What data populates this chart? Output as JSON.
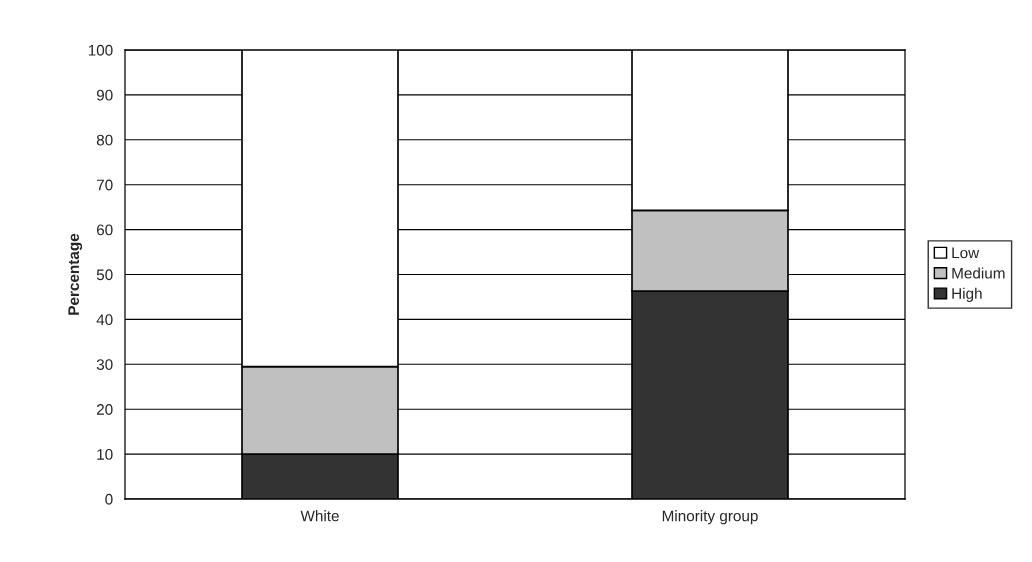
{
  "chart_data": {
    "type": "bar",
    "stacked": true,
    "ylabel": "Percentage",
    "categories": [
      "White",
      "Minority group"
    ],
    "series": [
      {
        "name": "High",
        "color": "#333333",
        "values": [
          10,
          46.3
        ]
      },
      {
        "name": "Medium",
        "color": "#c0c0c0",
        "values": [
          19.5,
          18
        ]
      },
      {
        "name": "Low",
        "color": "#ffffff",
        "values": [
          70.5,
          35.7
        ]
      }
    ],
    "ylim": [
      0,
      100
    ],
    "yticks": [
      0,
      10,
      20,
      30,
      40,
      50,
      60,
      70,
      80,
      90,
      100
    ],
    "grid": "y",
    "legend": "right"
  }
}
